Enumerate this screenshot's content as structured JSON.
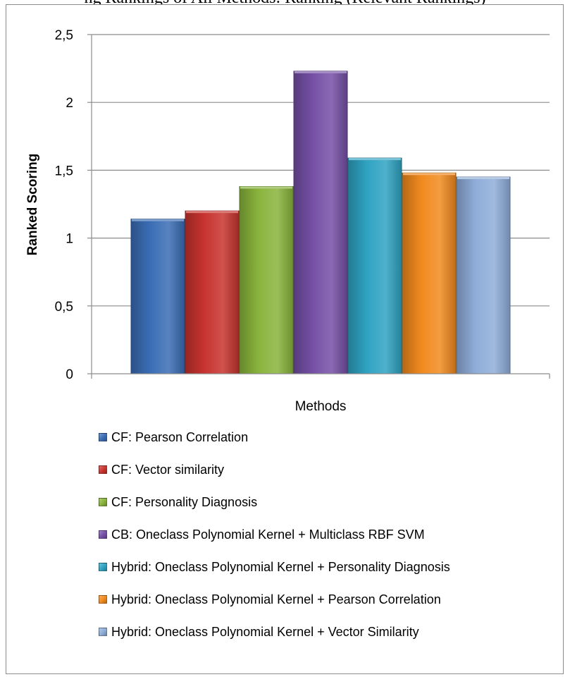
{
  "caption": "ng Rankings of All Methods: Ranking (Relevant Rankings)",
  "chart_data": {
    "type": "bar",
    "title": "",
    "xlabel": "Methods",
    "ylabel": "Ranked Scoring",
    "ylim": [
      0,
      2.5
    ],
    "yticks": [
      "0",
      "0,5",
      "1",
      "1,5",
      "2",
      "2,5"
    ],
    "grid": true,
    "legend_position": "bottom",
    "series": [
      {
        "name": "CF: Pearson Correlation",
        "value": 1.14,
        "color": "#3a6db5"
      },
      {
        "name": "CF: Vector similarity",
        "value": 1.2,
        "color": "#c8332e"
      },
      {
        "name": "CF: Personality Diagnosis",
        "value": 1.38,
        "color": "#89b43c"
      },
      {
        "name": "CB: Oneclass Polynomial Kernel + Multiclass RBF SVM",
        "value": 2.23,
        "color": "#7550a6"
      },
      {
        "name": "Hybrid: Oneclass Polynomial Kernel + Personality Diagnosis",
        "value": 1.59,
        "color": "#2fa3c2"
      },
      {
        "name": "Hybrid: Oneclass Polynomial Kernel + Pearson Correlation",
        "value": 1.48,
        "color": "#f18a1e"
      },
      {
        "name": "Hybrid: Oneclass Polynomial Kernel + Vector Similarity",
        "value": 1.45,
        "color": "#8fadd9"
      }
    ]
  }
}
